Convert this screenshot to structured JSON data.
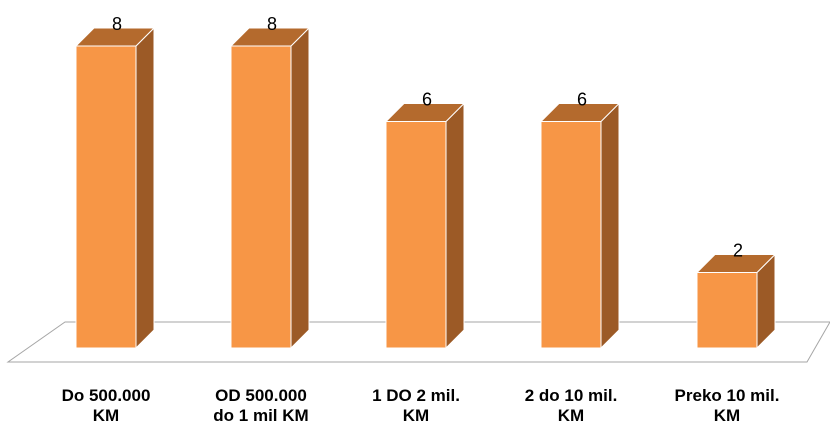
{
  "chart_data": {
    "type": "bar",
    "style": "3d-column",
    "categories": [
      "Do 500.000\nKM",
      "OD 500.000\ndo 1 mil KM",
      "1 DO 2 mil.\nKM",
      "2 do 10 mil.\nKM",
      "Preko 10 mil.\nKM"
    ],
    "values": [
      8,
      8,
      6,
      6,
      2
    ],
    "data_labels": [
      "8",
      "8",
      "6",
      "6",
      "2"
    ],
    "title": "",
    "xlabel": "",
    "ylabel": "",
    "ylim": [
      0,
      8
    ],
    "grid": false,
    "legend": "none",
    "colors": {
      "front": "#f79646",
      "side": "#9c5a26",
      "top": "#b46a2d",
      "floor_stroke": "#a6a6a6"
    }
  }
}
